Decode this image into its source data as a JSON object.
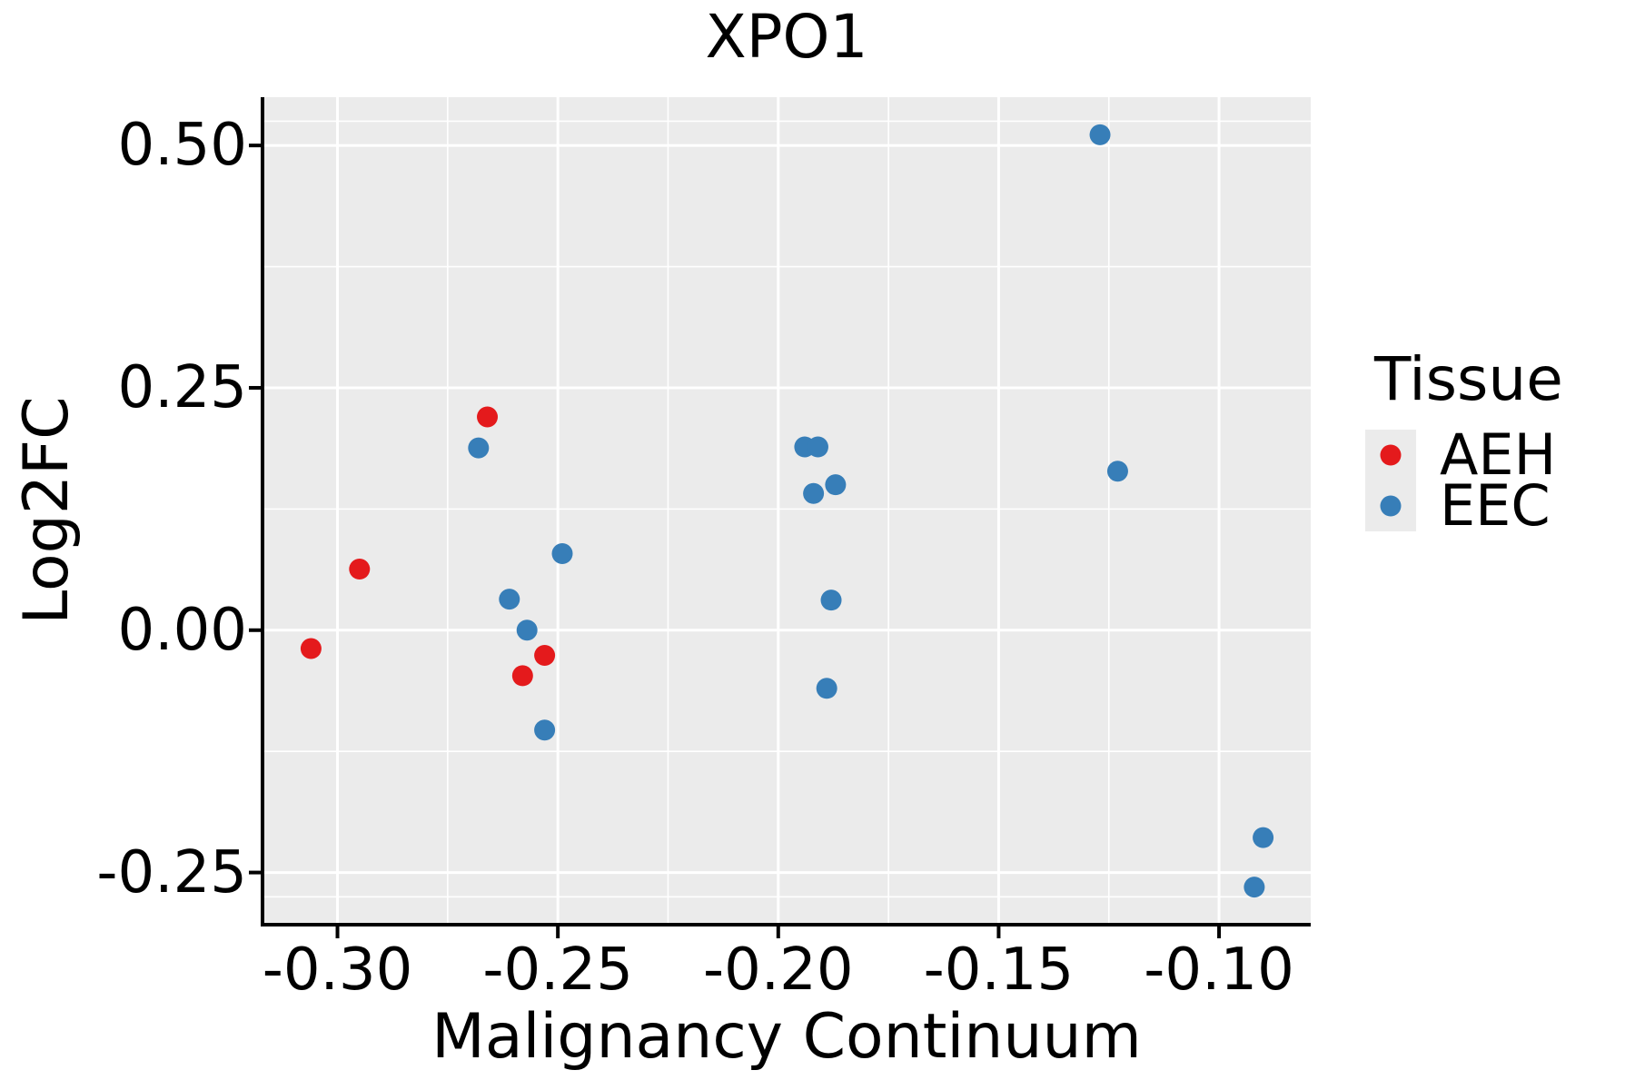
{
  "title": "XPO1",
  "legend": {
    "title": "Tissue",
    "items": [
      {
        "label": "AEH",
        "color": "#E41A1C"
      },
      {
        "label": "EEC",
        "color": "#377EB8"
      }
    ]
  },
  "colors": {
    "panel_background": "#EBEBEB",
    "grid": "#FFFFFF",
    "axis": "#000000",
    "aeh": "#E41A1C",
    "eec": "#377EB8"
  },
  "chart_data": {
    "type": "scatter",
    "title": "XPO1",
    "xlabel": "Malignancy Continuum",
    "ylabel": "Log2FC",
    "legend_title": "Tissue",
    "legend_position": "right",
    "grid": true,
    "xlim": [
      -0.3168,
      -0.0792
    ],
    "ylim": [
      -0.3038,
      0.5498
    ],
    "x_major_ticks": [
      -0.3,
      -0.25,
      -0.2,
      -0.15,
      -0.1
    ],
    "x_tick_labels": [
      "-0.30",
      "-0.25",
      "-0.20",
      "-0.15",
      "-0.10"
    ],
    "x_minor_ticks": [
      -0.275,
      -0.225,
      -0.175,
      -0.125
    ],
    "y_major_ticks": [
      0.5,
      0.25,
      0.0,
      -0.25
    ],
    "y_tick_labels": [
      "0.50",
      "0.25",
      "0.00",
      "-0.25"
    ],
    "y_minor_ticks": [
      0.525,
      0.375,
      0.125,
      -0.125,
      -0.275
    ],
    "point_radius": 11.5,
    "series": [
      {
        "name": "AEH",
        "color": "#E41A1C",
        "points": [
          [
            -0.306,
            -0.019
          ],
          [
            -0.295,
            0.063
          ],
          [
            -0.266,
            0.22
          ],
          [
            -0.258,
            -0.047
          ],
          [
            -0.253,
            -0.026
          ]
        ]
      },
      {
        "name": "EEC",
        "color": "#377EB8",
        "points": [
          [
            -0.268,
            0.188
          ],
          [
            -0.261,
            0.032
          ],
          [
            -0.257,
            0.0
          ],
          [
            -0.253,
            -0.103
          ],
          [
            -0.249,
            0.079
          ],
          [
            -0.194,
            0.189
          ],
          [
            -0.191,
            0.189
          ],
          [
            -0.192,
            0.141
          ],
          [
            -0.187,
            0.15
          ],
          [
            -0.188,
            0.031
          ],
          [
            -0.189,
            -0.06
          ],
          [
            -0.127,
            0.511
          ],
          [
            -0.123,
            0.164
          ],
          [
            -0.092,
            -0.265
          ],
          [
            -0.09,
            -0.214
          ]
        ]
      }
    ]
  }
}
